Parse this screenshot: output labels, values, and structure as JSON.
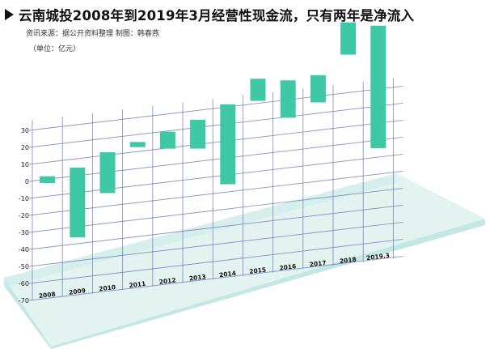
{
  "header": {
    "title": "云南城投2008年到2019年3月经营性现金流，只有两年是净流入",
    "source": "资讯来源：据公开资料整理    制图：韩春燕",
    "unit": "（单位：亿元）"
  },
  "colors": {
    "bar": "#3ec8a6",
    "grid": "#6a75b8",
    "platform_top": "#e3f3f0",
    "platform_front": "#c3e7e2",
    "platform_back": "#d2ede9"
  },
  "chart_data": {
    "type": "bar",
    "subtype": "floating-range",
    "categories": [
      "2008",
      "2009",
      "2010",
      "2011",
      "2012",
      "2013",
      "2014",
      "2015",
      "2016",
      "2017",
      "2018",
      "2019.3"
    ],
    "ranges": [
      [
        -2,
        2
      ],
      [
        -36,
        5
      ],
      [
        -12,
        12
      ],
      [
        13,
        16
      ],
      [
        10,
        20
      ],
      [
        8,
        25
      ],
      [
        -15,
        32
      ],
      [
        32,
        45
      ],
      [
        20,
        42
      ],
      [
        27,
        43
      ],
      [
        53,
        72
      ],
      [
        -4,
        68
      ]
    ],
    "y_ticks": [
      "30",
      "20",
      "10",
      "0",
      "-10",
      "-20",
      "-30",
      "-40",
      "-50",
      "-60",
      "-70"
    ],
    "ylim": [
      -70,
      30
    ],
    "grid": true
  }
}
